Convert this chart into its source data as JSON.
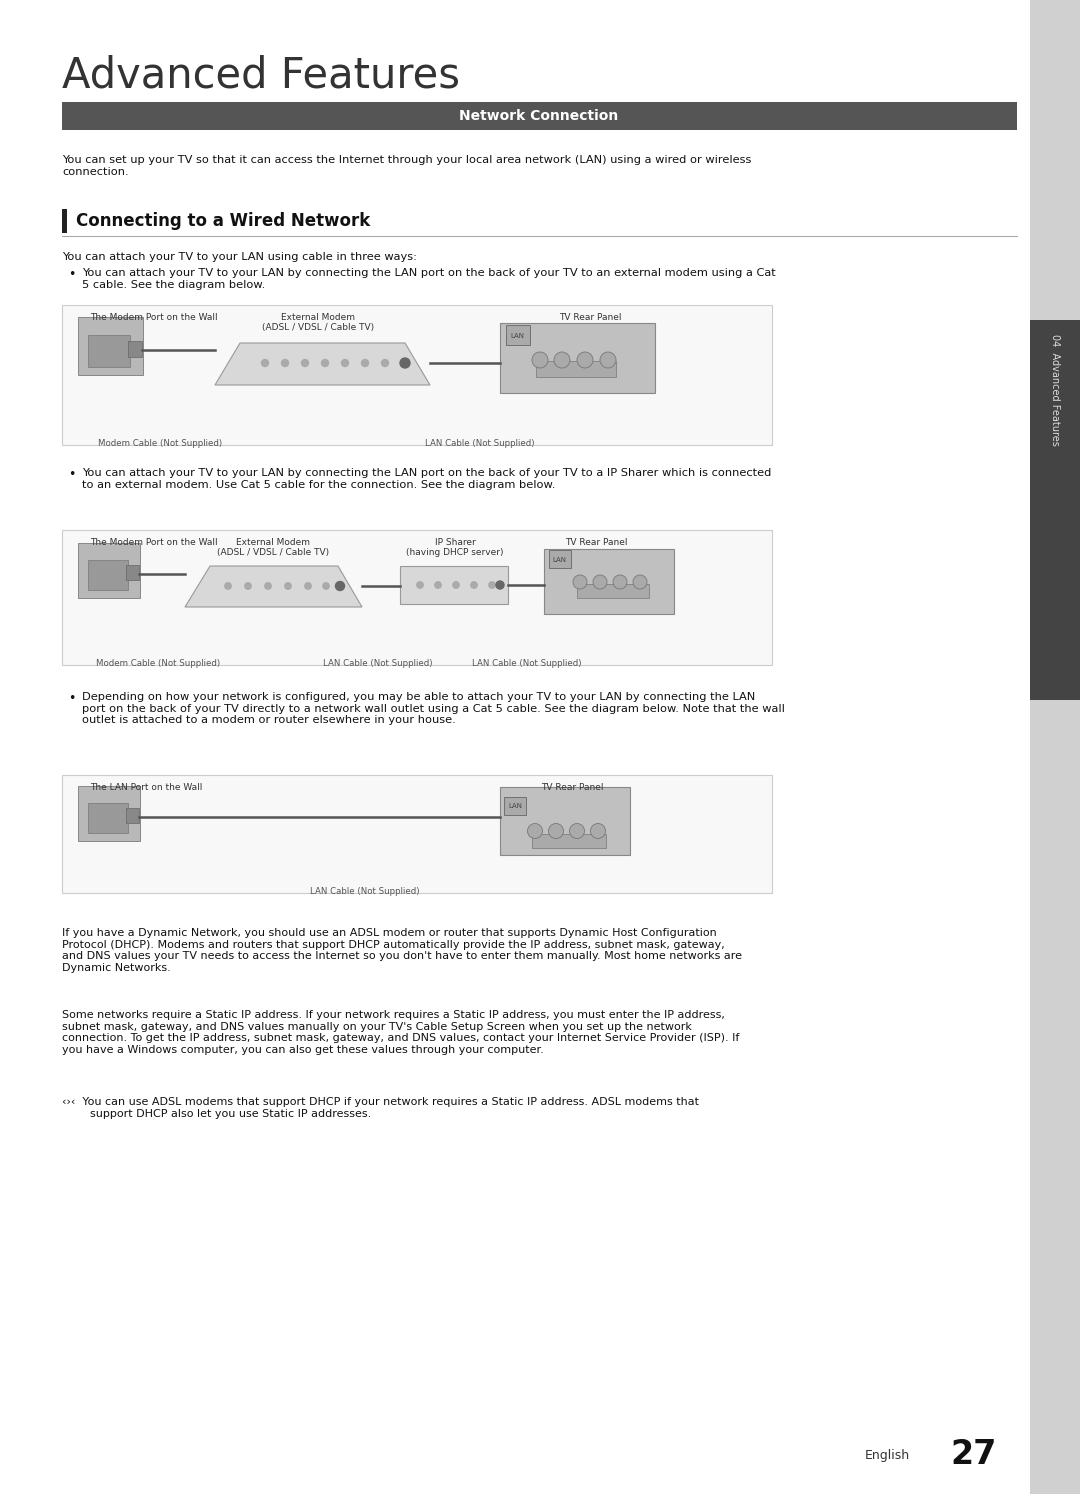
{
  "title": "Advanced Features",
  "section_header": "Network Connection",
  "section_header_bg": "#555555",
  "section_header_color": "#ffffff",
  "subsection_title": "Connecting to a Wired Network",
  "page_bg": "#ffffff",
  "sidebar_text": "04  Advanced Features",
  "page_number": "27",
  "page_number_label": "English",
  "intro_text": "You can set up your TV so that it can access the Internet through your local area network (LAN) using a wired or wireless\nconnection.",
  "three_ways_text": "You can attach your TV to your LAN using cable in three ways:",
  "bullet1_text": "You can attach your TV to your LAN by connecting the LAN port on the back of your TV to an external modem using a Cat\n5 cable. See the diagram below.",
  "bullet2_text": "You can attach your TV to your LAN by connecting the LAN port on the back of your TV to a IP Sharer which is connected\nto an external modem. Use Cat 5 cable for the connection. See the diagram below.",
  "bullet3_text": "Depending on how your network is configured, you may be able to attach your TV to your LAN by connecting the LAN\nport on the back of your TV directly to a network wall outlet using a Cat 5 cable. See the diagram below. Note that the wall\noutlet is attached to a modem or router elsewhere in your house.",
  "footer_text1": "If you have a Dynamic Network, you should use an ADSL modem or router that supports Dynamic Host Configuration\nProtocol (DHCP). Modems and routers that support DHCP automatically provide the IP address, subnet mask, gateway,\nand DNS values your TV needs to access the Internet so you don't have to enter them manually. Most home networks are\nDynamic Networks.",
  "footer_text2": "Some networks require a Static IP address. If your network requires a Static IP address, you must enter the IP address,\nsubnet mask, gateway, and DNS values manually on your TV's Cable Setup Screen when you set up the network\nconnection. To get the IP address, subnet mask, gateway, and DNS values, contact your Internet Service Provider (ISP). If\nyou have a Windows computer, you can also get these values through your computer.",
  "footer_note": "‹›‹  You can use ADSL modems that support DHCP if your network requires a Static IP address. ADSL modems that\n        support DHCP also let you use Static IP addresses.",
  "diagram1_labels": {
    "left": "The Modem Port on the Wall",
    "center": "External Modem\n(ADSL / VDSL / Cable TV)",
    "right": "TV Rear Panel",
    "cable1": "Modem Cable (Not Supplied)",
    "cable2": "LAN Cable (Not Supplied)"
  },
  "diagram2_labels": {
    "left": "The Modem Port on the Wall",
    "center_left": "External Modem\n(ADSL / VDSL / Cable TV)",
    "center_right": "IP Sharer\n(having DHCP server)",
    "right": "TV Rear Panel",
    "cable1": "Modem Cable (Not Supplied)",
    "cable2": "LAN Cable (Not Supplied)",
    "cable3": "LAN Cable (Not Supplied)"
  },
  "diagram3_labels": {
    "left": "The LAN Port on the Wall",
    "right": "TV Rear Panel",
    "cable": "LAN Cable (Not Supplied)"
  },
  "diagram_bg": "#f8f8f8",
  "diagram_border": "#cccccc"
}
